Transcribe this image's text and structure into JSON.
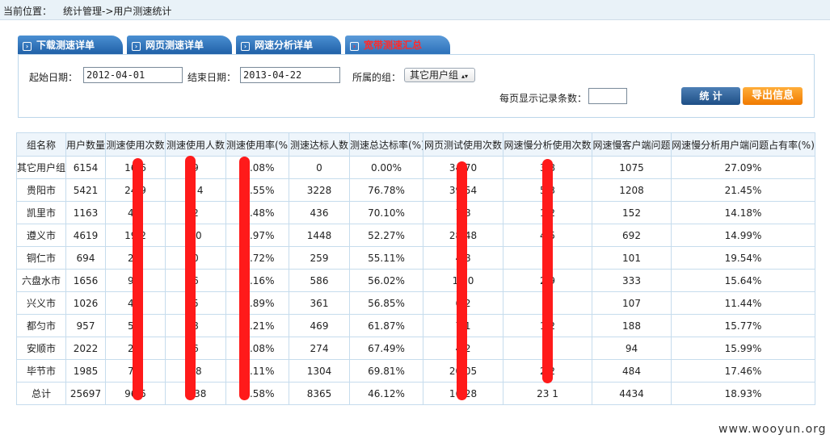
{
  "breadcrumb": {
    "label": "当前位置：",
    "path": "统计管理->用户测速统计"
  },
  "tabs": [
    {
      "label": "下载测速详单",
      "icon": "arrow-right-icon"
    },
    {
      "label": "网页测速详单",
      "icon": "arrow-right-icon"
    },
    {
      "label": "网速分析详单",
      "icon": "arrow-right-icon"
    },
    {
      "label": "宽带测速汇总",
      "icon": "arrow-right-icon",
      "active": true
    }
  ],
  "filters": {
    "start_label": "起始日期：",
    "start_value": "2012-04-01",
    "end_label": "结束日期：",
    "end_value": "2013-04-22",
    "group_label": "所属的组：",
    "group_value": "其它用户组",
    "page_size_label": "每页显示记录条数：",
    "page_size_value": ""
  },
  "buttons": {
    "stat": "统 计",
    "export": "导出信息"
  },
  "table": {
    "headers": [
      "组名称",
      "用户数量",
      "测速使用次数",
      "测速使用人数",
      "测速使用率(%)",
      "测速达标人数",
      "测速总达标率(%)",
      "网页测试使用次数",
      "网速慢分析使用次数",
      "网速慢客户端问题",
      "网速慢分析用户端问题占有率(%)"
    ],
    "rows": [
      [
        "其它用户组",
        "6154",
        "16 6",
        "9",
        "8 .08%",
        "0",
        "0.00%",
        "34 70",
        "3 8",
        "1075",
        "27.09%"
      ],
      [
        "贵阳市",
        "5421",
        "24 9",
        "4 4",
        "7 .55%",
        "3228",
        "76.78%",
        "39 54",
        "5 3",
        "1208",
        "21.45%"
      ],
      [
        "凯里市",
        "1163",
        "4 5",
        "2",
        "5 .48%",
        "436",
        "70.10%",
        "7 8",
        "1 2",
        "152",
        "14.18%"
      ],
      [
        "遵义市",
        "4619",
        "19 2",
        "70",
        "5 .97%",
        "1448",
        "52.27%",
        "28 48",
        "4 5",
        "692",
        "14.99%"
      ],
      [
        "铜仁市",
        "694",
        "2 2",
        "0",
        "6 .72%",
        "259",
        "55.11%",
        "4 8",
        "5",
        "101",
        "19.54%"
      ],
      [
        "六盘水市",
        "1656",
        "9 1",
        "6",
        "6 .16%",
        "586",
        "56.02%",
        "1 60",
        "2 9",
        "333",
        "15.64%"
      ],
      [
        "兴义市",
        "1026",
        "4 9",
        "5",
        "6 .89%",
        "361",
        "56.85%",
        "6 2",
        "9",
        "107",
        "11.44%"
      ],
      [
        "都匀市",
        "957",
        "5 2",
        "8",
        "7 .21%",
        "469",
        "61.87%",
        "7 1",
        "1 2",
        "188",
        "15.77%"
      ],
      [
        "安顺市",
        "2022",
        "2 3",
        "6",
        "2 .08%",
        "274",
        "67.49%",
        "4 2",
        "5",
        "94",
        "15.99%"
      ],
      [
        "毕节市",
        "1985",
        "7 6",
        "58",
        "9 .11%",
        "1304",
        "69.81%",
        "20 05",
        "2 2",
        "484",
        "17.46%"
      ],
      [
        "总计",
        "25697",
        "96 5",
        "1 38",
        "7 .58%",
        "8365",
        "46.12%",
        "16 28",
        "23 1",
        "4434",
        "18.93%"
      ]
    ]
  },
  "colors": {
    "scribble": "#ff1a1a",
    "tab_active_text": "#ff2a2a"
  },
  "watermark": "www.wooyun.org"
}
